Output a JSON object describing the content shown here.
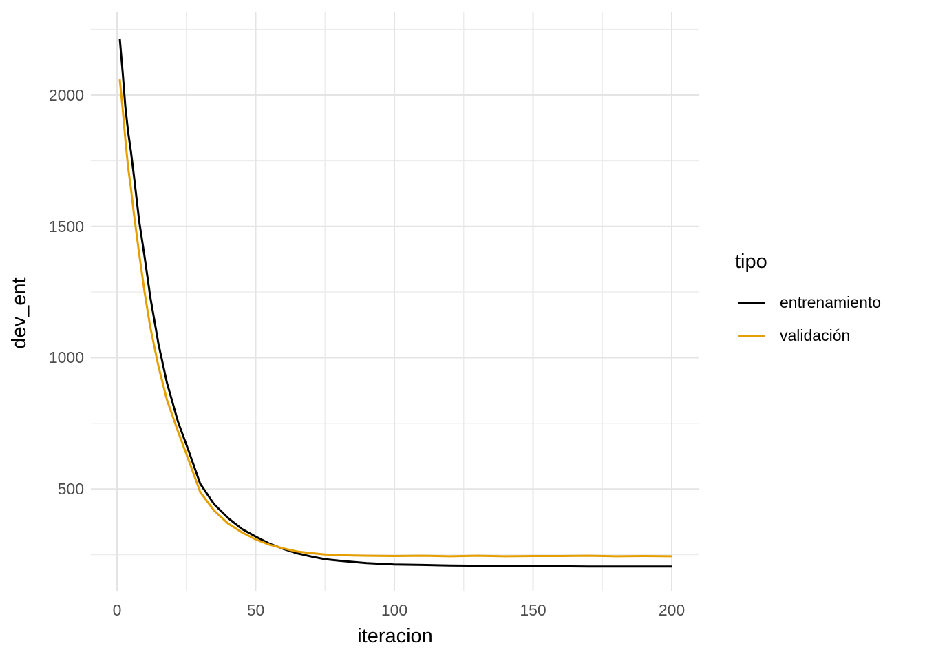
{
  "chart_data": {
    "type": "line",
    "title": "",
    "xlabel": "iteracion",
    "ylabel": "dev_ent",
    "legend_title": "tipo",
    "legend_position": "right",
    "grid": true,
    "x_ticks": [
      0,
      50,
      100,
      150,
      200
    ],
    "x_minor_ticks": [
      25,
      75,
      125,
      175
    ],
    "y_ticks": [
      500,
      1000,
      1500,
      2000
    ],
    "y_minor_ticks": [
      250,
      750,
      1250,
      1750,
      2250
    ],
    "xlim": [
      -8,
      210
    ],
    "ylim": [
      110,
      2310
    ],
    "x": [
      1,
      2,
      3,
      4,
      5,
      6,
      8,
      10,
      12,
      15,
      18,
      22,
      26,
      30,
      35,
      40,
      45,
      50,
      55,
      60,
      65,
      70,
      75,
      80,
      90,
      100,
      110,
      120,
      130,
      140,
      150,
      160,
      170,
      180,
      190,
      200
    ],
    "series": [
      {
        "name": "entrenamiento",
        "color": "#000000",
        "values": [
          2215,
          2090,
          1955,
          1860,
          1785,
          1700,
          1520,
          1380,
          1230,
          1050,
          905,
          755,
          640,
          520,
          442,
          390,
          348,
          319,
          292,
          272,
          255,
          243,
          233,
          227,
          218,
          213,
          211,
          209,
          208,
          207,
          206,
          206,
          205,
          205,
          205,
          205
        ]
      },
      {
        "name": "validación",
        "color": "#E69F00",
        "values": [
          2060,
          1950,
          1830,
          1725,
          1645,
          1555,
          1395,
          1245,
          1115,
          965,
          840,
          718,
          605,
          488,
          418,
          369,
          335,
          308,
          288,
          274,
          262,
          256,
          251,
          248,
          246,
          245,
          246,
          244,
          246,
          244,
          245,
          245,
          246,
          244,
          245,
          244
        ]
      }
    ],
    "colors": {
      "major_grid": "#e4e4e4",
      "minor_grid": "#ececec",
      "tick_text": "#4d4d4d",
      "title_text": "#000000",
      "background": "#ffffff"
    }
  }
}
